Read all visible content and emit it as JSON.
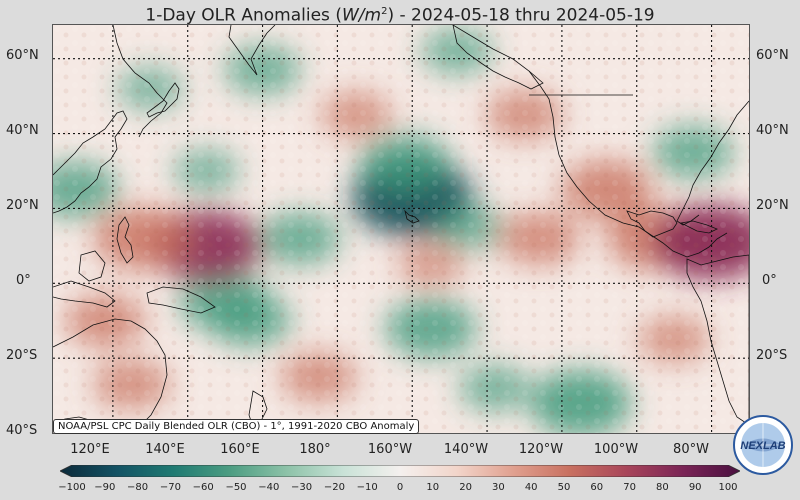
{
  "title": {
    "prefix": "1-Day OLR Anomalies (",
    "unit_base": "W/m",
    "unit_exp": "2",
    "suffix": ") - 2024-05-18 thru 2024-05-19"
  },
  "map": {
    "lat_labels": [
      "60°N",
      "40°N",
      "20°N",
      "0°",
      "20°S",
      "40°S"
    ],
    "lon_labels": [
      "120°E",
      "140°E",
      "160°E",
      "180°",
      "160°W",
      "140°W",
      "120°W",
      "100°W",
      "80°W"
    ],
    "lon_range": [
      104,
      290
    ],
    "lat_range": [
      -40,
      69
    ],
    "colors": {
      "background": "#f5e9e4",
      "positive": "#c8705c",
      "strong_positive": "#8a2a55",
      "negative": "#3f9a7c",
      "strong_negative": "#14505a",
      "coast": "#111111",
      "grid": "#111111"
    },
    "anomalies": [
      {
        "lon": 200,
        "lat": 23,
        "value": -85
      },
      {
        "lon": 198,
        "lat": 32,
        "value": -55
      },
      {
        "lon": 215,
        "lat": 15,
        "value": -35
      },
      {
        "lon": 170,
        "lat": 12,
        "value": -45
      },
      {
        "lon": 150,
        "lat": -5,
        "value": -55
      },
      {
        "lon": 157,
        "lat": -10,
        "value": -45
      },
      {
        "lon": 205,
        "lat": -12,
        "value": -55
      },
      {
        "lon": 245,
        "lat": -32,
        "value": -65
      },
      {
        "lon": 222,
        "lat": -28,
        "value": -35
      },
      {
        "lon": 275,
        "lat": 35,
        "value": -45
      },
      {
        "lon": 110,
        "lat": 25,
        "value": -50
      },
      {
        "lon": 160,
        "lat": 57,
        "value": -40
      },
      {
        "lon": 212,
        "lat": 62,
        "value": -35
      },
      {
        "lon": 145,
        "lat": 30,
        "value": -30
      },
      {
        "lon": 130,
        "lat": 52,
        "value": -30
      },
      {
        "lon": 145,
        "lat": 10,
        "value": 75
      },
      {
        "lon": 128,
        "lat": 12,
        "value": 60
      },
      {
        "lon": 265,
        "lat": 12,
        "value": 60
      },
      {
        "lon": 280,
        "lat": 11,
        "value": 80
      },
      {
        "lon": 252,
        "lat": 25,
        "value": 55
      },
      {
        "lon": 234,
        "lat": 12,
        "value": 45
      },
      {
        "lon": 118,
        "lat": -10,
        "value": 45
      },
      {
        "lon": 125,
        "lat": -27,
        "value": 40
      },
      {
        "lon": 175,
        "lat": -25,
        "value": 40
      },
      {
        "lon": 185,
        "lat": 45,
        "value": 35
      },
      {
        "lon": 230,
        "lat": 45,
        "value": 40
      },
      {
        "lon": 205,
        "lat": 5,
        "value": 30
      },
      {
        "lon": 270,
        "lat": -15,
        "value": 35
      }
    ]
  },
  "caption": "NOAA/PSL CPC Daily Blended OLR (CBO) - 1°, 1991-2020 CBO Anomaly",
  "colorbar": {
    "ticks": [
      "−100",
      "−90",
      "−80",
      "−70",
      "−60",
      "−50",
      "−40",
      "−30",
      "−20",
      "−10",
      "0",
      "10",
      "20",
      "30",
      "40",
      "50",
      "60",
      "70",
      "80",
      "90",
      "100"
    ],
    "stops": [
      "#0c2a3a",
      "#135264",
      "#1f7a72",
      "#4c9d82",
      "#8dc2a8",
      "#c9e2d7",
      "#f4f0ee",
      "#f2d5ca",
      "#e0a08f",
      "#c87060",
      "#a8455a",
      "#7a2456",
      "#4a1040"
    ]
  },
  "logo": {
    "text": "NEXLAB"
  }
}
